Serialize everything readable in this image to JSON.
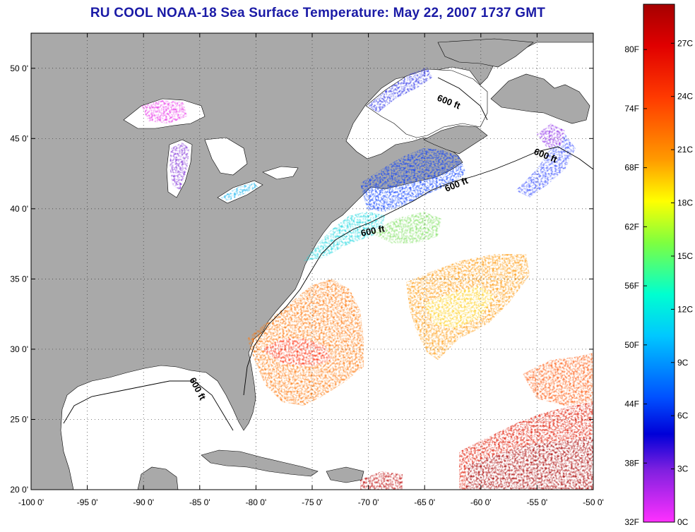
{
  "title": "RU COOL  NOAA-18  Sea Surface Temperature:  May 22, 2007 1737 GMT",
  "map": {
    "lon_range": [
      -100,
      -50
    ],
    "lat_range": [
      20,
      52.5
    ],
    "lon_ticks": [
      "-100 0'",
      "-95 0'",
      "-90 0'",
      "-85 0'",
      "-80 0'",
      "-75 0'",
      "-70 0'",
      "-65 0'",
      "-60 0'",
      "-55 0'",
      "-50 0'"
    ],
    "lat_ticks": [
      "20 0'",
      "25 0'",
      "30 0'",
      "35 0'",
      "40 0'",
      "45 0'",
      "50 0'"
    ],
    "depth_labels": [
      "600 ft",
      "600 ft",
      "600 ft",
      "600 ft",
      "600 ft"
    ],
    "land_color": "#a9a9a9",
    "ocean_color": "#ffffff",
    "grid": "dotted"
  },
  "colorbar": {
    "fahrenheit_labels": [
      "80F",
      "74F",
      "68F",
      "62F",
      "56F",
      "50F",
      "44F",
      "38F",
      "32F"
    ],
    "celsius_labels": [
      "27C",
      "24C",
      "21C",
      "18C",
      "15C",
      "12C",
      "9C",
      "6C",
      "3C",
      "0C"
    ],
    "colors": [
      "#a50000",
      "#ff1a00",
      "#ff8c00",
      "#ffff00",
      "#7fff3f",
      "#00ffbf",
      "#00bfff",
      "#0040ff",
      "#0000d0",
      "#a020ff",
      "#ff30ff"
    ]
  }
}
